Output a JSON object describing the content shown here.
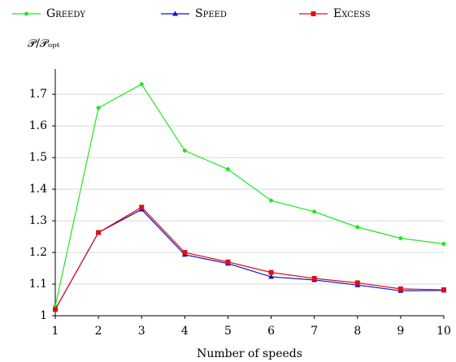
{
  "chart_data": {
    "type": "line",
    "y_label": "𝒫/𝒫ₒₚₜ",
    "x_label": "Number of speeds",
    "x": [
      1,
      2,
      3,
      4,
      5,
      6,
      7,
      8,
      9,
      10
    ],
    "xlim": [
      1,
      10
    ],
    "xticks": [
      1,
      2,
      3,
      4,
      5,
      6,
      7,
      8,
      9,
      10
    ],
    "ylim": [
      1,
      1.78
    ],
    "yticks": [
      1,
      1.1,
      1.2,
      1.3,
      1.4,
      1.5,
      1.6,
      1.7
    ],
    "grid": true,
    "series": [
      {
        "name": "Greedy",
        "color": "#22e622",
        "marker": "circle",
        "values": [
          1.03,
          1.657,
          1.732,
          1.522,
          1.463,
          1.364,
          1.329,
          1.28,
          1.245,
          1.227
        ]
      },
      {
        "name": "Speed",
        "color": "#1010d0",
        "marker": "triangle",
        "values": [
          1.02,
          1.263,
          1.336,
          1.193,
          1.165,
          1.123,
          1.113,
          1.097,
          1.079,
          1.08
        ]
      },
      {
        "name": "Excess",
        "color": "#e01010",
        "marker": "square",
        "values": [
          1.02,
          1.263,
          1.343,
          1.2,
          1.17,
          1.137,
          1.118,
          1.104,
          1.085,
          1.082
        ]
      }
    ]
  }
}
